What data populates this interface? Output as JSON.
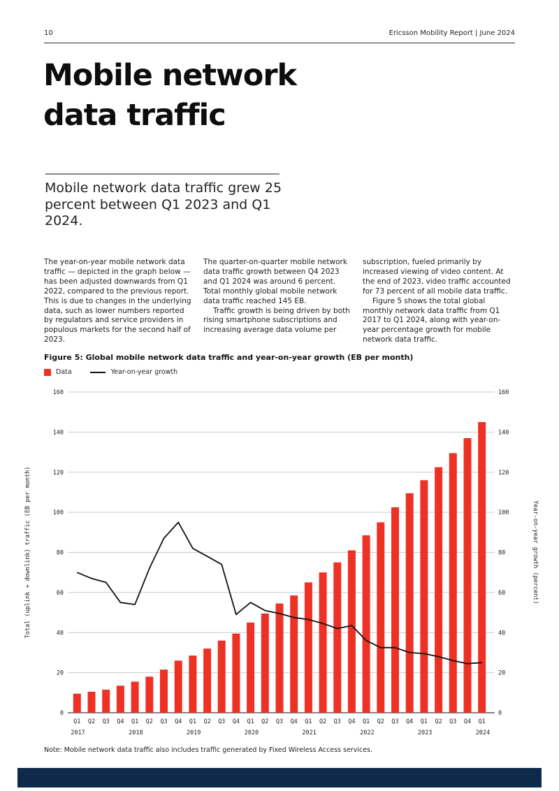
{
  "page": {
    "number": "10",
    "header_right": "Ericsson Mobility Report  |  June 2024"
  },
  "title": {
    "line1": "Mobile network",
    "line2": "data traffic"
  },
  "subtitle": "Mobile network data traffic grew 25 percent between Q1 2023 and Q1 2024.",
  "columns": {
    "col1": {
      "p1": "The year-on-year mobile network data traffic — depicted in the graph below — has been adjusted downwards from Q1 2022, compared to the previous report. This is due to changes in the underlying data, such as lower numbers reported by regulators and service providers in populous markets for the second half of 2023."
    },
    "col2": {
      "p1": "The quarter-on-quarter mobile network data traffic growth between Q4 2023 and Q1 2024 was around 6 percent. Total monthly global mobile network data traffic reached 145 EB.",
      "p2": "Traffic growth is being driven by both rising smartphone subscriptions and increasing average data volume per"
    },
    "col3": {
      "p1": "subscription, fueled primarily by increased viewing of video content. At the end of 2023, video traffic accounted for 73 percent of all mobile data traffic.",
      "p2": "Figure 5 shows the total global monthly network data traffic from Q1 2017 to Q1 2024, along with year-on-year percentage growth for mobile network data traffic."
    }
  },
  "figure": {
    "caption": "Figure 5: Global mobile network data traffic and year-on-year growth (EB per month)"
  },
  "note": "Note: Mobile network data traffic also includes traffic generated by Fixed Wireless Access services.",
  "chart_data": {
    "type": "bar",
    "title": "Figure 5: Global mobile network data traffic and year-on-year growth (EB per month)",
    "quarters": [
      "Q1",
      "Q2",
      "Q3",
      "Q4",
      "Q1",
      "Q2",
      "Q3",
      "Q4",
      "Q1",
      "Q2",
      "Q3",
      "Q4",
      "Q1",
      "Q2",
      "Q3",
      "Q4",
      "Q1",
      "Q2",
      "Q3",
      "Q4",
      "Q1",
      "Q2",
      "Q3",
      "Q4",
      "Q1",
      "Q2",
      "Q3",
      "Q4",
      "Q1"
    ],
    "years": [
      {
        "label": "2017",
        "start_index": 0
      },
      {
        "label": "2018",
        "start_index": 4
      },
      {
        "label": "2019",
        "start_index": 8
      },
      {
        "label": "2020",
        "start_index": 12
      },
      {
        "label": "2021",
        "start_index": 16
      },
      {
        "label": "2022",
        "start_index": 20
      },
      {
        "label": "2023",
        "start_index": 24
      },
      {
        "label": "2024",
        "start_index": 28
      }
    ],
    "series": [
      {
        "name": "Data",
        "type": "bar",
        "axis": "left",
        "color": "#ee3124",
        "values": [
          9.5,
          10.5,
          11.5,
          13.5,
          15.5,
          18,
          21.5,
          26,
          28.5,
          32,
          36,
          39.5,
          45,
          49.5,
          54.5,
          58.5,
          65,
          70,
          75,
          81,
          88.5,
          95,
          102.5,
          109.5,
          116,
          122.5,
          129.5,
          137,
          145
        ]
      },
      {
        "name": "Year-on-year growth",
        "type": "line",
        "axis": "right",
        "color": "#111111",
        "values": [
          70,
          67,
          65,
          55,
          54,
          72,
          87,
          95,
          82,
          78,
          74,
          49,
          55,
          51,
          49.5,
          47.5,
          46.5,
          44.5,
          42,
          43.5,
          36,
          32.5,
          32.5,
          30,
          29.5,
          28,
          26,
          24.5,
          25
        ]
      }
    ],
    "left_axis": {
      "label": "Total (uplink + downlink) traffic (EB per month)",
      "min": 0,
      "max": 160,
      "tick_step": 20
    },
    "right_axis": {
      "label": "Year-on-year growth (percent)",
      "min": 0,
      "max": 160,
      "tick_step": 20
    },
    "grid": true,
    "legend_position": "top-left"
  }
}
